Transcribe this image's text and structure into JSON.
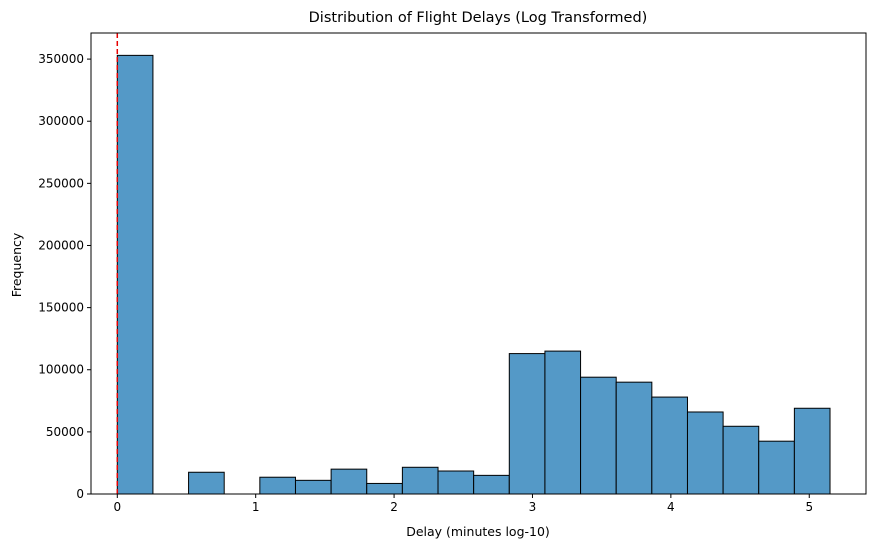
{
  "chart_data": {
    "type": "bar",
    "title": "Distribution of Flight Delays (Log Transformed)",
    "xlabel": "Delay (minutes log-10)",
    "ylabel": "Frequency",
    "xlim": [
      -0.19,
      5.41
    ],
    "ylim": [
      0,
      371000
    ],
    "bin_edges": [
      0,
      0.2575,
      0.515,
      0.7725,
      1.03,
      1.2875,
      1.545,
      1.8025,
      2.06,
      2.3175,
      2.575,
      2.8325,
      3.09,
      3.3475,
      3.605,
      3.8625,
      4.12,
      4.3775,
      4.635,
      4.8925,
      5.15
    ],
    "values": [
      353000,
      0,
      17500,
      0,
      13500,
      11000,
      20000,
      8500,
      21500,
      18500,
      15000,
      113000,
      115000,
      94000,
      90000,
      78000,
      66000,
      54500,
      42500,
      69000
    ],
    "xticks": [
      0,
      1,
      2,
      3,
      4,
      5
    ],
    "yticks": [
      0,
      50000,
      100000,
      150000,
      200000,
      250000,
      300000,
      350000
    ],
    "bar_color": "#5499c7",
    "bar_edge_color": "#000000",
    "reference_line": {
      "x": 0,
      "color": "#e60000",
      "style": "dashed"
    },
    "grid": false
  }
}
